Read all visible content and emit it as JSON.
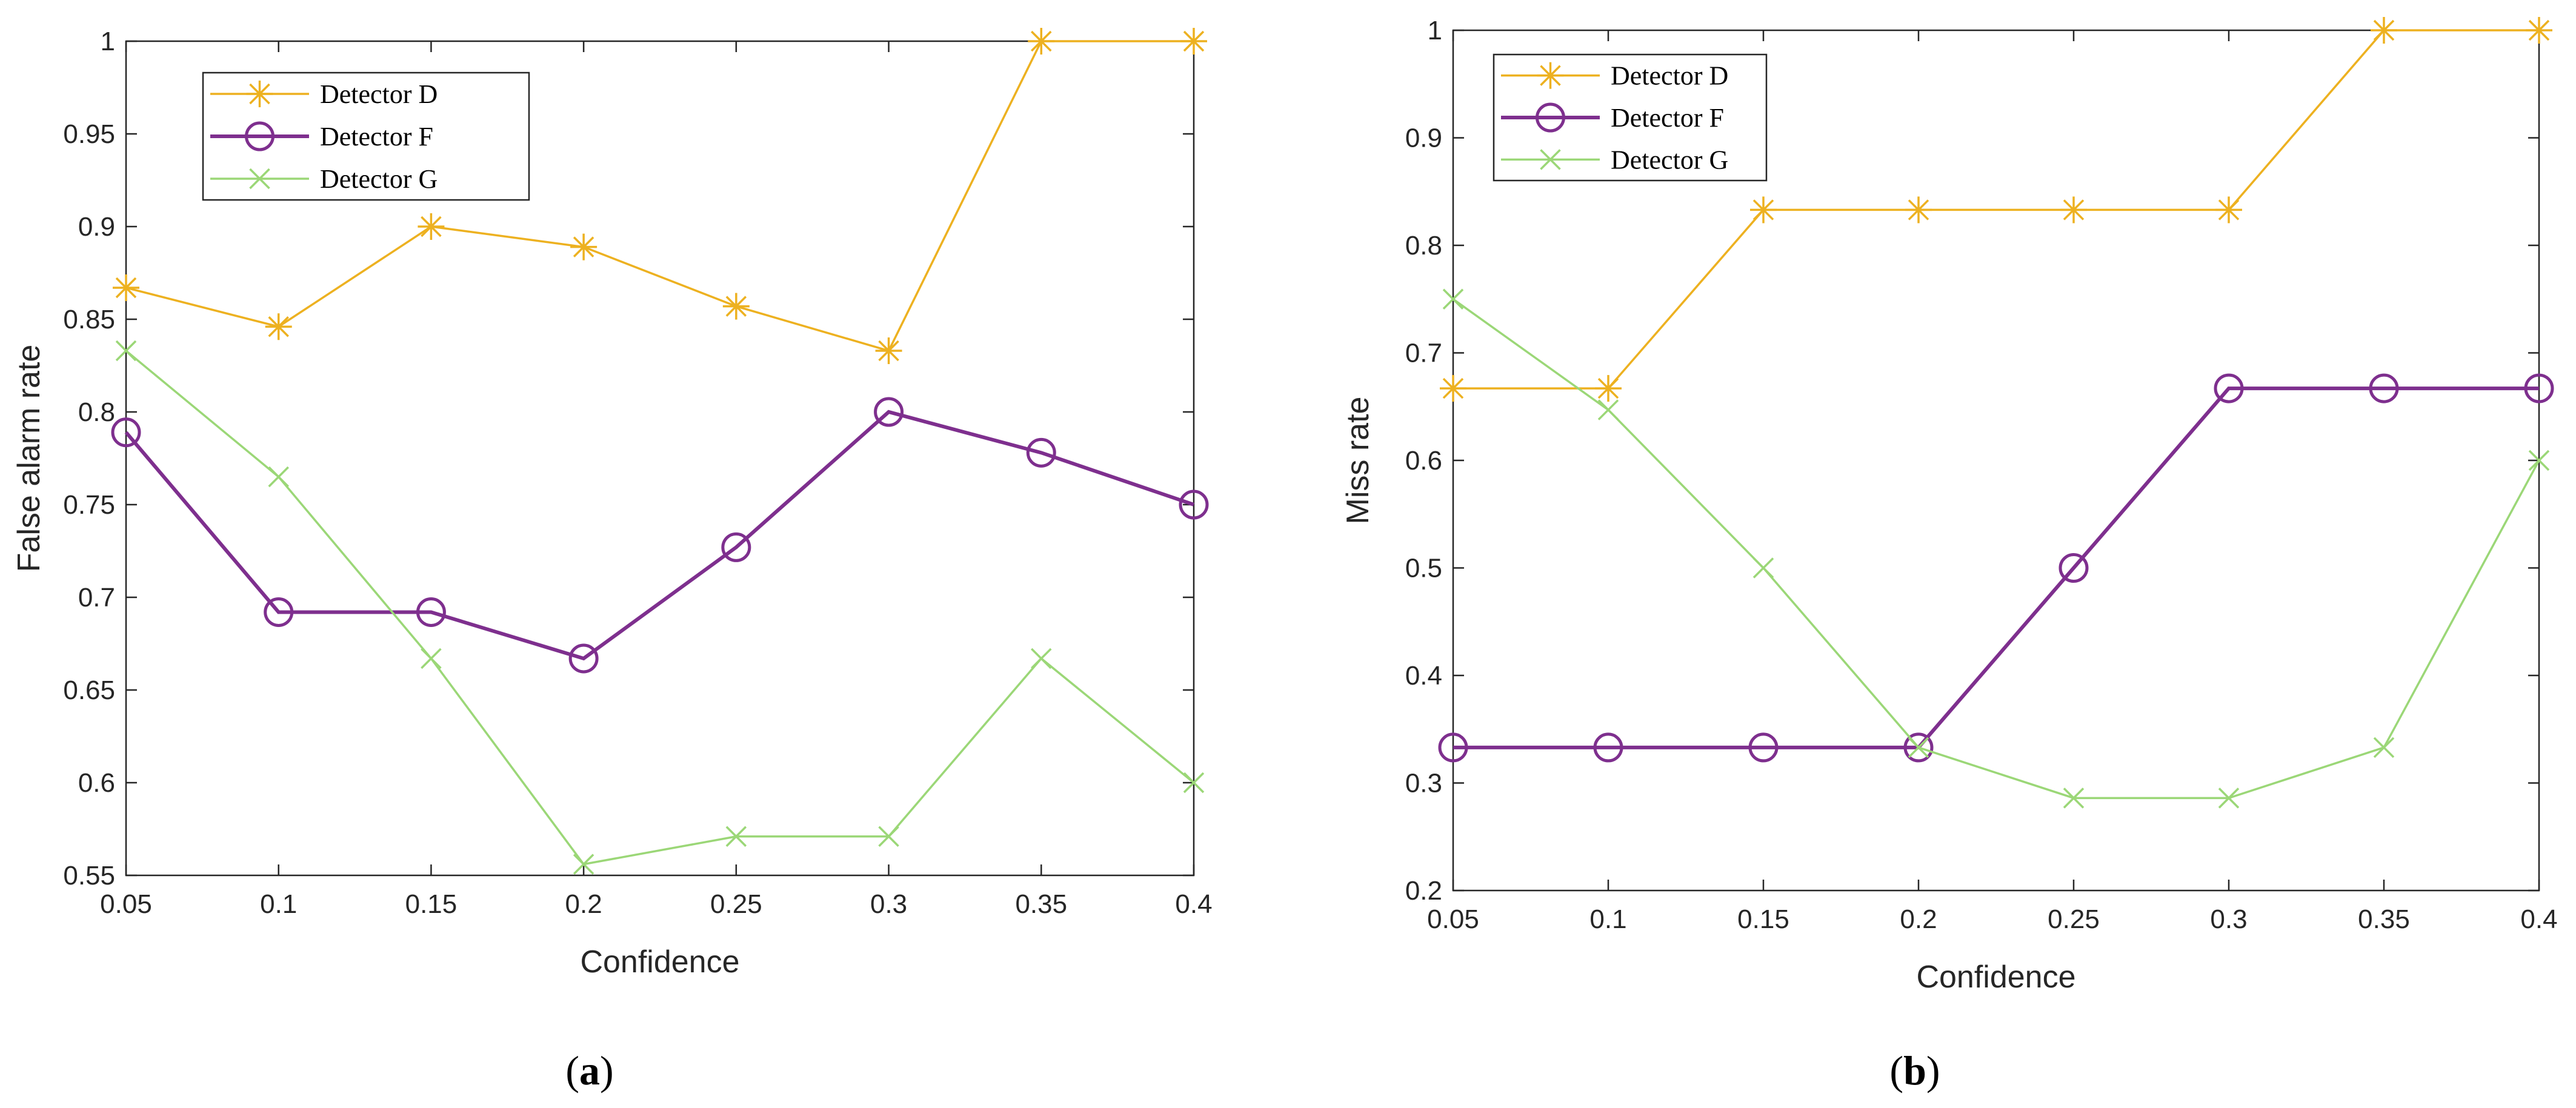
{
  "colors": {
    "detector_d": "#EDB120",
    "detector_f": "#7E2F8E",
    "detector_g": "#9BD777",
    "axis": "#262626"
  },
  "chart_data": [
    {
      "id": "a",
      "type": "line",
      "caption_letter": "a",
      "caption_open": "(",
      "caption_close": ")",
      "xlabel": "Confidence",
      "ylabel": "False alarm rate",
      "x": [
        0.05,
        0.1,
        0.15,
        0.2,
        0.25,
        0.3,
        0.35,
        0.4
      ],
      "x_tick_labels": [
        "0.05",
        "0.1",
        "0.15",
        "0.2",
        "0.25",
        "0.3",
        "0.35",
        "0.4"
      ],
      "xlim": [
        0.05,
        0.4
      ],
      "ylim": [
        0.55,
        1.0
      ],
      "y_ticks": [
        0.55,
        0.6,
        0.65,
        0.7,
        0.75,
        0.8,
        0.85,
        0.9,
        0.95,
        1.0
      ],
      "y_tick_labels": [
        "0.55",
        "0.6",
        "0.65",
        "0.7",
        "0.75",
        "0.8",
        "0.85",
        "0.9",
        "0.95",
        "1"
      ],
      "grid": false,
      "legend_position": "top-left",
      "series": [
        {
          "name": "Detector D",
          "marker": "asterisk",
          "color_key": "detector_d",
          "values": [
            0.867,
            0.846,
            0.9,
            0.889,
            0.857,
            0.833,
            1.0,
            1.0
          ]
        },
        {
          "name": "Detector F",
          "marker": "circle",
          "color_key": "detector_f",
          "values": [
            0.789,
            0.692,
            0.692,
            0.667,
            0.727,
            0.8,
            0.778,
            0.75
          ]
        },
        {
          "name": "Detector G",
          "marker": "x",
          "color_key": "detector_g",
          "values": [
            0.833,
            0.765,
            0.667,
            0.556,
            0.571,
            0.571,
            0.667,
            0.6
          ]
        }
      ]
    },
    {
      "id": "b",
      "type": "line",
      "caption_letter": "b",
      "caption_open": "(",
      "caption_close": ")",
      "xlabel": "Confidence",
      "ylabel": "Miss rate",
      "x": [
        0.05,
        0.1,
        0.15,
        0.2,
        0.25,
        0.3,
        0.35,
        0.4
      ],
      "x_tick_labels": [
        "0.05",
        "0.1",
        "0.15",
        "0.2",
        "0.25",
        "0.3",
        "0.35",
        "0.4"
      ],
      "xlim": [
        0.05,
        0.4
      ],
      "ylim": [
        0.2,
        1.0
      ],
      "y_ticks": [
        0.2,
        0.3,
        0.4,
        0.5,
        0.6,
        0.7,
        0.8,
        0.9,
        1.0
      ],
      "y_tick_labels": [
        "0.2",
        "0.3",
        "0.4",
        "0.5",
        "0.6",
        "0.7",
        "0.8",
        "0.9",
        "1"
      ],
      "grid": false,
      "legend_position": "top-left",
      "series": [
        {
          "name": "Detector D",
          "marker": "asterisk",
          "color_key": "detector_d",
          "values": [
            0.667,
            0.667,
            0.833,
            0.833,
            0.833,
            0.833,
            1.0,
            1.0
          ]
        },
        {
          "name": "Detector F",
          "marker": "circle",
          "color_key": "detector_f",
          "values": [
            0.333,
            0.333,
            0.333,
            0.333,
            0.5,
            0.667,
            0.667,
            0.667
          ]
        },
        {
          "name": "Detector G",
          "marker": "x",
          "color_key": "detector_g",
          "values": [
            0.75,
            0.647,
            0.5,
            0.333,
            0.286,
            0.286,
            0.333,
            0.6
          ]
        }
      ]
    }
  ]
}
